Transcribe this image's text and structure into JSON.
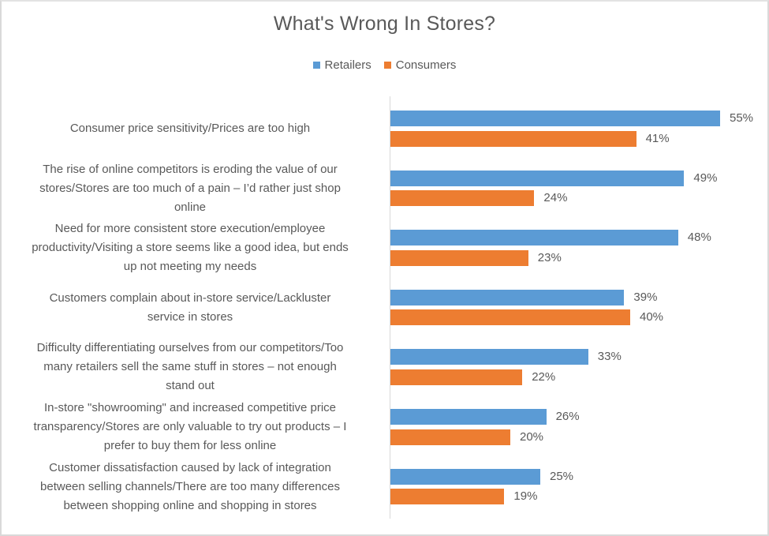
{
  "chart_data": {
    "type": "bar",
    "orientation": "horizontal",
    "title": "What's Wrong In Stores?",
    "xlabel": "",
    "ylabel": "",
    "legend_position": "top",
    "grid": false,
    "xlim": [
      0,
      55
    ],
    "value_format": "percent",
    "categories": [
      "Consumer price sensitivity/Prices are too high",
      "The rise of online competitors is eroding the value of our stores/Stores are too much of a pain – I’d rather just shop online",
      "Need for more consistent store execution/employee productivity/Visiting a store seems like a good idea, but ends up not meeting my needs",
      "Customers complain about in-store service/Lackluster service in stores",
      "Difficulty differentiating ourselves from our competitors/Too many retailers sell the same stuff in stores – not enough stand out",
      "In-store \"showrooming\" and increased competitive price transparency/Stores are only valuable to try out products – I prefer to buy them for less online",
      "Customer dissatisfaction caused by lack of integration between selling channels/There are too many differences between shopping online and shopping in stores"
    ],
    "category_lines": [
      [
        "Consumer price sensitivity/Prices are too high"
      ],
      [
        "The rise of online competitors is eroding the value of our",
        "stores/Stores are too much of a pain – I’d rather just shop",
        "online"
      ],
      [
        "Need for more consistent store execution/employee",
        "productivity/Visiting a store seems like a good idea, but ends",
        "up not meeting my needs"
      ],
      [
        "Customers complain about in-store service/Lackluster",
        "service in stores"
      ],
      [
        "Difficulty differentiating ourselves from our competitors/Too",
        "many retailers sell the same stuff in stores – not enough",
        "stand out"
      ],
      [
        "In-store \"showrooming\" and increased competitive price",
        "transparency/Stores are only valuable to try out products – I",
        "prefer to buy them for less online"
      ],
      [
        "Customer dissatisfaction caused by lack of integration",
        "between selling channels/There are too many differences",
        "between shopping online and shopping in stores"
      ]
    ],
    "series": [
      {
        "name": "Retailers",
        "color": "#5B9BD5",
        "values": [
          55,
          49,
          48,
          39,
          33,
          26,
          25
        ],
        "labels": [
          "55%",
          "49%",
          "48%",
          "39%",
          "33%",
          "26%",
          "25%"
        ]
      },
      {
        "name": "Consumers",
        "color": "#ED7D31",
        "values": [
          41,
          24,
          23,
          40,
          22,
          20,
          19
        ],
        "labels": [
          "41%",
          "24%",
          "23%",
          "40%",
          "22%",
          "20%",
          "19%"
        ]
      }
    ]
  },
  "colors": {
    "text": "#595959",
    "axis": "#d9d9d9",
    "frame": "#d9d9d9"
  }
}
